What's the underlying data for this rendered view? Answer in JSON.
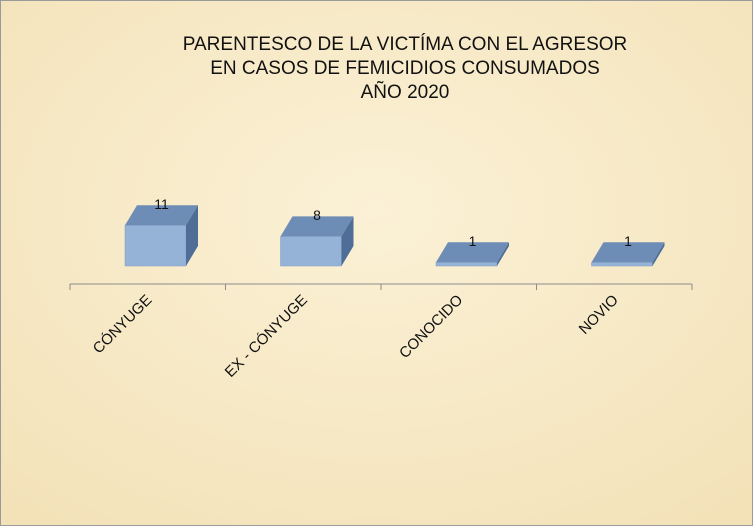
{
  "chart_data": {
    "type": "bar3d",
    "title": [
      "PARENTESCO DE LA VICTÍMA CON EL AGRESOR",
      "EN CASOS DE FEMICIDIOS CONSUMADOS",
      "AÑO 2020"
    ],
    "categories": [
      "CÓNYUGE",
      "EX - CÓNYUGE",
      "CONOCIDO",
      "NOVIO"
    ],
    "values": [
      11,
      8,
      1,
      1
    ],
    "color": "#95b3d7"
  }
}
